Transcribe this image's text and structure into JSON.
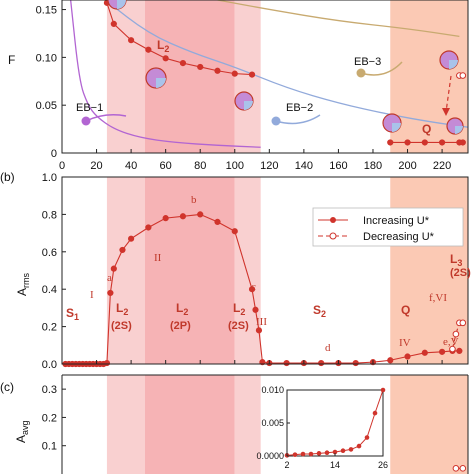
{
  "panels": {
    "top": {
      "ylabel": "F"
    },
    "middle": {
      "tag": "(b)",
      "ylabel": "A",
      "ylabel_sub": "rms"
    },
    "bottom": {
      "tag": "(c)",
      "ylabel": "A",
      "ylabel_sub": "avg"
    }
  },
  "regions_labels": {
    "S1": "S",
    "S1_sub": "1",
    "L2a": "L",
    "L2a_sub": "2",
    "L2a_mode": "(2S)",
    "L2b": "L",
    "L2b_sub": "2",
    "L2b_mode": "(2P)",
    "L2c": "L",
    "L2c_sub": "2",
    "L2c_mode": "(2S)",
    "S2": "S",
    "S2_sub": "2",
    "Q": "Q",
    "L3": "L",
    "L3_sub": "3",
    "L3_mode": "(2S)",
    "top_L2": "L",
    "top_L2_sub": "2",
    "top_Q": "Q"
  },
  "eb_labels": {
    "eb1": "EB−1",
    "eb2": "EB−2",
    "eb3": "EB−3"
  },
  "point_labels": {
    "I": "I",
    "a": "a",
    "II": "II",
    "b": "b",
    "c": "c",
    "III": "III",
    "d": "d",
    "IV": "IV",
    "fVI": "f,VI",
    "eV": "e,V"
  },
  "legend": {
    "increasing": "Increasing U*",
    "decreasing": "Decreasing U*"
  },
  "colors": {
    "series": "#d0342c",
    "band_light": "#f9d0d0",
    "band_mid": "#f6b3b5",
    "band_q": "#fbc9b4",
    "eb1": "#b265d2",
    "eb2": "#92aadb",
    "eb3": "#c8aa70"
  },
  "chart_data": [
    {
      "type": "line",
      "panel": "top",
      "ylabel": "F",
      "xlim": [
        0,
        235
      ],
      "ylim": [
        0,
        0.16
      ],
      "x_ticks": [
        0,
        20,
        40,
        60,
        80,
        100,
        120,
        140,
        160,
        180,
        200,
        220
      ],
      "y_ticks": [
        0,
        0.05,
        0.1,
        0.15
      ],
      "y_tick_labels": [
        "0",
        "0.05",
        "0.10",
        "0.15"
      ],
      "regions": [
        {
          "from": 26,
          "to": 48,
          "shade": "light"
        },
        {
          "from": 48,
          "to": 100,
          "shade": "mid"
        },
        {
          "from": 100,
          "to": 115,
          "shade": "light"
        },
        {
          "from": 190,
          "to": 235,
          "shade": "q"
        }
      ],
      "series": [
        {
          "style": "increasing",
          "x": [
            26,
            30,
            40,
            50,
            60,
            70,
            80,
            90,
            100,
            110
          ],
          "y": [
            0.157,
            0.135,
            0.118,
            0.108,
            0.099,
            0.094,
            0.09,
            0.086,
            0.083,
            0.082
          ]
        },
        {
          "style": "increasing",
          "x": [
            190,
            200,
            210,
            220,
            230,
            232
          ],
          "y": [
            0.011,
            0.011,
            0.011,
            0.011,
            0.011,
            0.011
          ]
        },
        {
          "style": "decreasing",
          "x": [
            230,
            232
          ],
          "y": [
            0.081,
            0.081
          ]
        }
      ],
      "envelope_curves": [
        {
          "id": "eb1",
          "x": [
            5,
            10,
            15,
            20,
            30,
            45,
            65,
            90,
            115
          ],
          "y": [
            0.16,
            0.075,
            0.05,
            0.038,
            0.025,
            0.016,
            0.011,
            0.008,
            0.006
          ]
        },
        {
          "id": "eb2",
          "x": [
            25,
            50,
            75,
            100,
            130,
            160,
            190,
            215,
            235
          ],
          "y": [
            0.16,
            0.125,
            0.105,
            0.09,
            0.068,
            0.052,
            0.04,
            0.032,
            0.027
          ]
        },
        {
          "id": "eb3",
          "x": [
            90,
            120,
            160,
            200,
            230
          ],
          "y": [
            0.16,
            0.15,
            0.138,
            0.13,
            0.122
          ]
        }
      ]
    },
    {
      "type": "line",
      "panel": "middle",
      "ylabel": "A_rms",
      "xlim": [
        0,
        235
      ],
      "ylim": [
        0,
        1.0
      ],
      "x_ticks": [
        0,
        20,
        40,
        60,
        80,
        100,
        120,
        140,
        160,
        180,
        200,
        220
      ],
      "y_ticks": [
        0,
        0.2,
        0.4,
        0.6,
        0.8,
        1.0
      ],
      "y_tick_labels": [
        "0.0",
        "0.2",
        "0.4",
        "0.6",
        "0.8",
        "1.0"
      ],
      "regions": [
        {
          "from": 26,
          "to": 48,
          "shade": "light"
        },
        {
          "from": 48,
          "to": 100,
          "shade": "mid"
        },
        {
          "from": 100,
          "to": 115,
          "shade": "light"
        },
        {
          "from": 190,
          "to": 235,
          "shade": "q"
        }
      ],
      "series": [
        {
          "name": "Increasing U*",
          "style": "increasing",
          "x": [
            2,
            4,
            6,
            8,
            10,
            12,
            14,
            16,
            18,
            20,
            22,
            24,
            26,
            28,
            30,
            35,
            40,
            50,
            60,
            70,
            80,
            90,
            100,
            110,
            112,
            114,
            116,
            120,
            130,
            140,
            150,
            160,
            170,
            180,
            190,
            200,
            210,
            220,
            226,
            230
          ],
          "y": [
            0,
            0,
            0,
            0,
            0,
            0,
            0,
            0,
            0,
            0,
            0,
            0,
            0.005,
            0.38,
            0.51,
            0.61,
            0.67,
            0.73,
            0.78,
            0.79,
            0.8,
            0.76,
            0.71,
            0.4,
            0.29,
            0.18,
            0.01,
            0.005,
            0.005,
            0.005,
            0.005,
            0.005,
            0.005,
            0.01,
            0.02,
            0.04,
            0.06,
            0.065,
            0.07,
            0.07
          ]
        },
        {
          "name": "Decreasing U*",
          "style": "decreasing",
          "x": [
            226,
            228,
            230,
            232
          ],
          "y": [
            0.08,
            0.16,
            0.22,
            0.22
          ]
        }
      ]
    },
    {
      "type": "line",
      "panel": "bottom",
      "ylabel": "A_avg",
      "xlim": [
        0,
        235
      ],
      "ylim": [
        0,
        0.35
      ],
      "y_ticks": [
        0.1,
        0.2,
        0.3
      ],
      "y_tick_labels": [
        "0.1",
        "0.2",
        "0.3"
      ],
      "regions": [
        {
          "from": 26,
          "to": 48,
          "shade": "light"
        },
        {
          "from": 48,
          "to": 100,
          "shade": "mid"
        },
        {
          "from": 100,
          "to": 115,
          "shade": "light"
        },
        {
          "from": 190,
          "to": 235,
          "shade": "q"
        }
      ],
      "series": [
        {
          "style": "decreasing",
          "x": [
            228,
            232
          ],
          "y": [
            0.02,
            0.02
          ]
        }
      ],
      "inset": {
        "type": "line",
        "xlim": [
          2,
          26
        ],
        "ylim": [
          0,
          0.01
        ],
        "x_ticks": [
          2,
          14,
          26
        ],
        "y_ticks": [
          0,
          0.005,
          0.01
        ],
        "y_tick_labels": [
          "0.0000",
          "0.005",
          "0.010"
        ],
        "x": [
          2,
          4,
          6,
          8,
          10,
          12,
          14,
          16,
          18,
          20,
          22,
          24,
          26
        ],
        "y": [
          0.0001,
          0.0002,
          0.0003,
          0.0003,
          0.0004,
          0.0005,
          0.0006,
          0.0008,
          0.001,
          0.0015,
          0.0028,
          0.0065,
          0.01
        ]
      }
    }
  ]
}
